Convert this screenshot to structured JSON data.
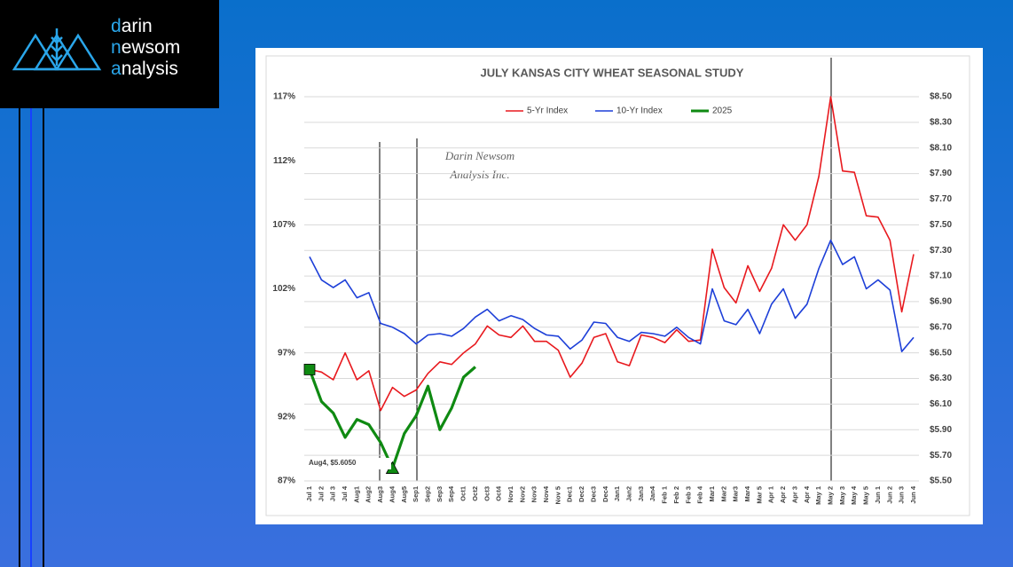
{
  "logo": {
    "lines": [
      "darin",
      "newsom",
      "analysis"
    ]
  },
  "chart_data": {
    "type": "line",
    "title": "JULY KANSAS CITY WHEAT SEASONAL STUDY",
    "watermark": [
      "Darin Newsom",
      "Analysis Inc."
    ],
    "annotation": "Aug4, $5.6050",
    "categories": [
      "Jul 1",
      "Jul 2",
      "Jul 3",
      "Jul 4",
      "Aug1",
      "Aug2",
      "Aug3",
      "Aug4",
      "Aug5",
      "Sep1",
      "Sep2",
      "Sep3",
      "Sep4",
      "Oct1",
      "Oct2",
      "Oct3",
      "Oct4",
      "Nov1",
      "Nov2",
      "Nov3",
      "Nov4",
      "Nov 5",
      "Dec1",
      "Dec2",
      "Dec3",
      "Dec4",
      "Jan1",
      "Jan2",
      "Jan3",
      "Jan4",
      "Feb 1",
      "Feb 2",
      "Feb 3",
      "Feb 4",
      "Mar1",
      "Mar2",
      "Mar3",
      "Mar4",
      "Mar 5",
      "Apr 1",
      "Apr 2",
      "Apr 3",
      "Apr 4",
      "May 1",
      "May 2",
      "May 3",
      "May 4",
      "May 5",
      "Jun 1",
      "Jun 2",
      "Jun 3",
      "Jun 4"
    ],
    "series": [
      {
        "name": "5-Yr Index",
        "color": "#e8191e",
        "values": [
          95.7,
          95.5,
          94.9,
          97.0,
          94.9,
          95.6,
          92.5,
          94.3,
          93.6,
          94.1,
          95.4,
          96.3,
          96.1,
          97.0,
          97.7,
          99.1,
          98.4,
          98.2,
          99.1,
          97.9,
          97.9,
          97.2,
          95.1,
          96.2,
          98.2,
          98.5,
          96.3,
          96.0,
          98.4,
          98.2,
          97.8,
          98.8,
          97.9,
          98.0,
          105.1,
          102.1,
          100.9,
          103.8,
          101.8,
          103.6,
          107.0,
          105.8,
          107.0,
          110.8,
          117.0,
          111.2,
          111.1,
          107.7,
          107.6,
          105.8,
          100.2,
          104.7
        ]
      },
      {
        "name": "10-Yr Index",
        "color": "#1d3fd8",
        "values": [
          104.5,
          102.7,
          102.1,
          102.7,
          101.3,
          101.7,
          99.3,
          99.0,
          98.5,
          97.7,
          98.4,
          98.5,
          98.3,
          98.9,
          99.8,
          100.4,
          99.5,
          99.9,
          99.6,
          98.9,
          98.4,
          98.3,
          97.3,
          98.0,
          99.4,
          99.3,
          98.2,
          97.9,
          98.6,
          98.5,
          98.3,
          99.0,
          98.2,
          97.7,
          102.0,
          99.5,
          99.2,
          100.4,
          98.5,
          100.8,
          102.0,
          99.7,
          100.8,
          103.6,
          105.8,
          103.9,
          104.5,
          102.0,
          102.7,
          101.9,
          97.1,
          98.2
        ]
      },
      {
        "name": "2025",
        "color": "#0f8a12",
        "values": [
          95.7,
          93.2,
          92.3,
          90.4,
          91.8,
          91.4,
          90.0,
          88.0,
          90.7,
          92.1,
          94.4,
          91.0,
          92.7,
          95.1,
          95.9,
          null,
          null,
          null,
          null,
          null,
          null,
          null,
          null,
          null,
          null,
          null,
          null,
          null,
          null,
          null,
          null,
          null,
          null,
          null,
          null,
          null,
          null,
          null,
          null,
          null,
          null,
          null,
          null,
          null,
          null,
          null,
          null,
          null,
          null,
          null,
          null,
          null
        ]
      }
    ],
    "ylim": [
      87,
      117
    ],
    "yticks": [
      {
        "value": 87,
        "label": "87%"
      },
      {
        "value": 92,
        "label": "92%"
      },
      {
        "value": 97,
        "label": "97%"
      },
      {
        "value": 102,
        "label": "102%"
      },
      {
        "value": 107,
        "label": "107%"
      },
      {
        "value": 112,
        "label": "112%"
      },
      {
        "value": 117,
        "label": "117%"
      }
    ],
    "y2lim": [
      5.5,
      8.5
    ],
    "y2ticks": [
      {
        "value": 5.5,
        "label": "$5.50"
      },
      {
        "value": 5.7,
        "label": "$5.70"
      },
      {
        "value": 5.9,
        "label": "$5.90"
      },
      {
        "value": 6.1,
        "label": "$6.10"
      },
      {
        "value": 6.3,
        "label": "$6.30"
      },
      {
        "value": 6.5,
        "label": "$6.50"
      },
      {
        "value": 6.7,
        "label": "$6.70"
      },
      {
        "value": 6.9,
        "label": "$6.90"
      },
      {
        "value": 7.1,
        "label": "$7.10"
      },
      {
        "value": 7.3,
        "label": "$7.30"
      },
      {
        "value": 7.5,
        "label": "$7.50"
      },
      {
        "value": 7.7,
        "label": "$7.70"
      },
      {
        "value": 7.9,
        "label": "$7.90"
      },
      {
        "value": 8.1,
        "label": "$8.10"
      },
      {
        "value": 8.3,
        "label": "$8.30"
      },
      {
        "value": 8.5,
        "label": "$8.50"
      }
    ],
    "grid": true,
    "legend": "top"
  }
}
